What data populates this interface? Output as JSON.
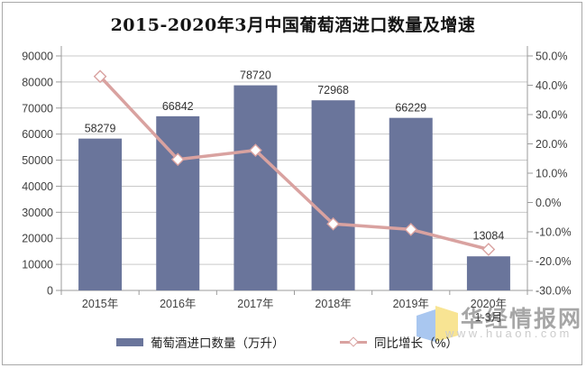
{
  "title": "2015-2020年3月中国葡萄酒进口数量及增速",
  "watermark": {
    "brand": "华经情报网",
    "url": "www.huaon.com",
    "logo_colors": {
      "left_page": "#a9c7f0",
      "right_page": "#f8e493"
    }
  },
  "colors": {
    "bar": "#6a759b",
    "line": "#d9a2a0",
    "marker_fill": "#ffffff",
    "gridline": "#c9c9c9",
    "axis": "#9b9b9b",
    "tick_text": "#3f3f3f",
    "data_label": "#333333"
  },
  "chart_data": {
    "type": "bar",
    "subtype": "bar-line-combo",
    "title": "2015-2020年3月中国葡萄酒进口数量及增速",
    "categories": [
      "2015年",
      "2016年",
      "2017年",
      "2018年",
      "2019年",
      "2020年\n1-3月"
    ],
    "series": [
      {
        "name": "葡萄酒进口数量（万升）",
        "type": "bar",
        "axis": "left",
        "color": "#6a759b",
        "values": [
          58279,
          66842,
          78720,
          72968,
          66229,
          13084
        ],
        "data_labels_visible": true
      },
      {
        "name": "同比增长（%）",
        "type": "line",
        "axis": "right",
        "color": "#d9a2a0",
        "marker": "diamond",
        "values_estimated_pct": [
          43.0,
          14.7,
          17.8,
          -7.3,
          -9.2,
          -16.0
        ],
        "data_labels_visible": false
      }
    ],
    "left_axis": {
      "min": 0,
      "max": 90000,
      "step": 10000,
      "labels_top_to_bottom": [
        "90000",
        "80000",
        "70000",
        "60000",
        "50000",
        "40000",
        "30000",
        "20000",
        "10000",
        "0"
      ]
    },
    "right_axis": {
      "min": -30,
      "max": 50,
      "step": 10,
      "labels_top_to_bottom": [
        "50.0%",
        "40.0%",
        "30.0%",
        "20.0%",
        "10.0%",
        "0.0%",
        "-10.0%",
        "-20.0%",
        "-30.0%"
      ]
    },
    "grid": true,
    "legend_position": "bottom"
  }
}
